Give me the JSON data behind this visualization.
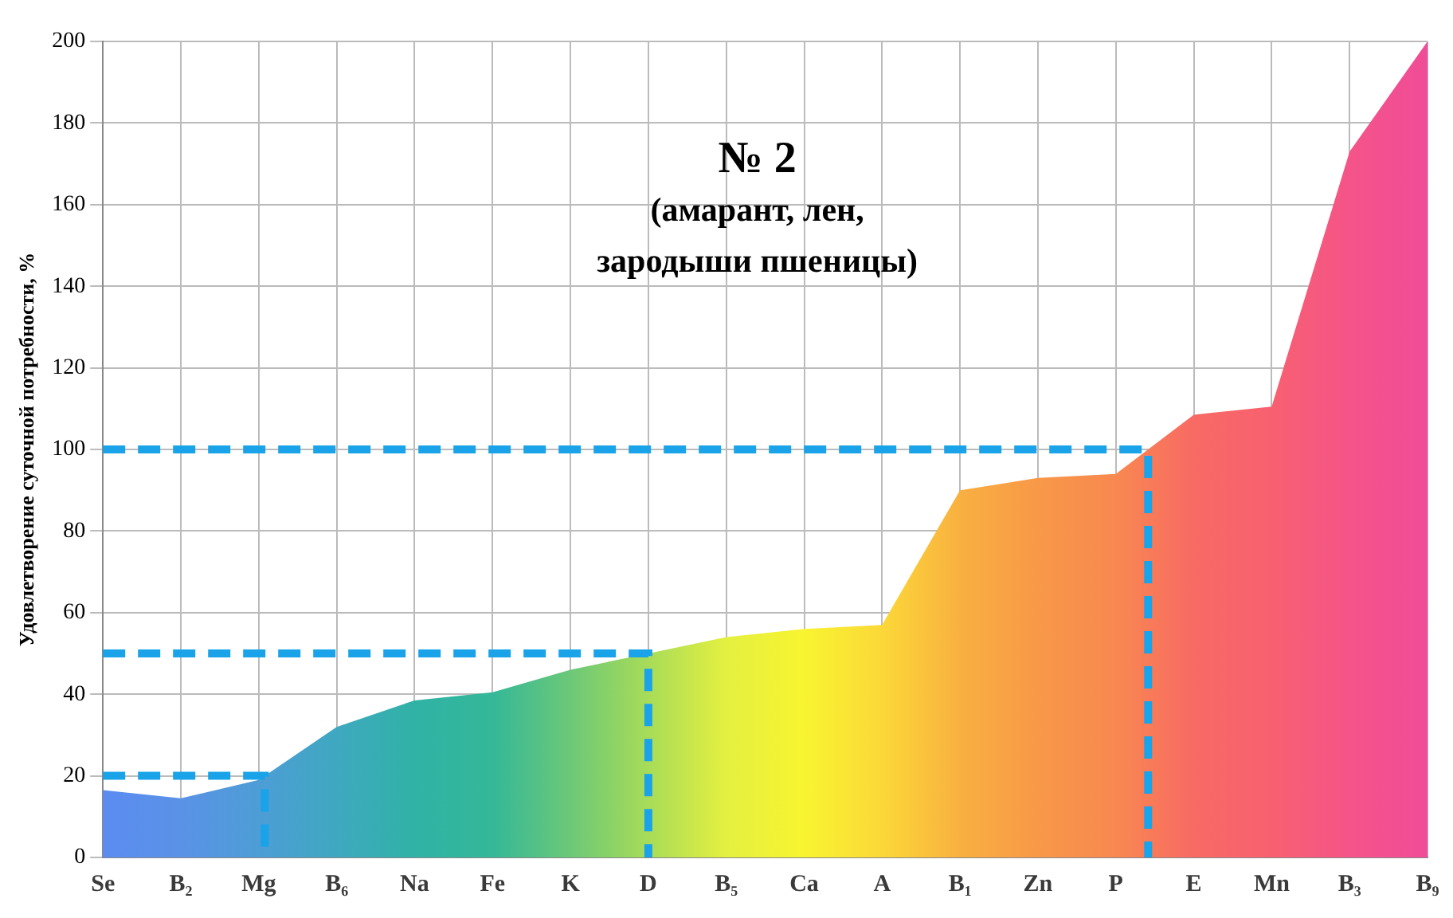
{
  "chart_data": {
    "type": "area",
    "title": "№ 2",
    "subtitle": "(амарант, лен,\nзародыши пшеницы)",
    "ylabel": "Удовлетворение суточной потребности, %",
    "categories": [
      "Se",
      "B₂",
      "Mg",
      "B₆",
      "Na",
      "Fe",
      "K",
      "D",
      "B₅",
      "Ca",
      "A",
      "B₁",
      "Zn",
      "P",
      "E",
      "Mn",
      "B₃",
      "B₉"
    ],
    "values": [
      16.5,
      14.5,
      19,
      32,
      38.5,
      40.5,
      46,
      50,
      54,
      56,
      57,
      90,
      93,
      94,
      108.5,
      110.5,
      173,
      200
    ],
    "colors": [
      "#5b8cf2",
      "#5a92e6",
      "#4d9dd6",
      "#3fa8c0",
      "#30b2a6",
      "#34b898",
      "#6cc878",
      "#a8dc58",
      "#e4f040",
      "#f8f430",
      "#fbd838",
      "#f9b040",
      "#f89848",
      "#f88850",
      "#f86a64",
      "#f86070",
      "#f45488",
      "#f04c98"
    ],
    "ylim": [
      0,
      200
    ],
    "yticks": [
      0,
      20,
      40,
      60,
      80,
      100,
      120,
      140,
      160,
      180,
      200
    ],
    "grid": true,
    "legend": false,
    "ref_lines": [
      {
        "axis": "y",
        "value": 20,
        "color": "#1aa3e8",
        "line_style": "dashed"
      },
      {
        "axis": "y",
        "value": 50,
        "color": "#1aa3e8",
        "line_style": "dashed"
      },
      {
        "axis": "y",
        "value": 100,
        "color": "#1aa3e8",
        "line_style": "dashed"
      }
    ]
  }
}
